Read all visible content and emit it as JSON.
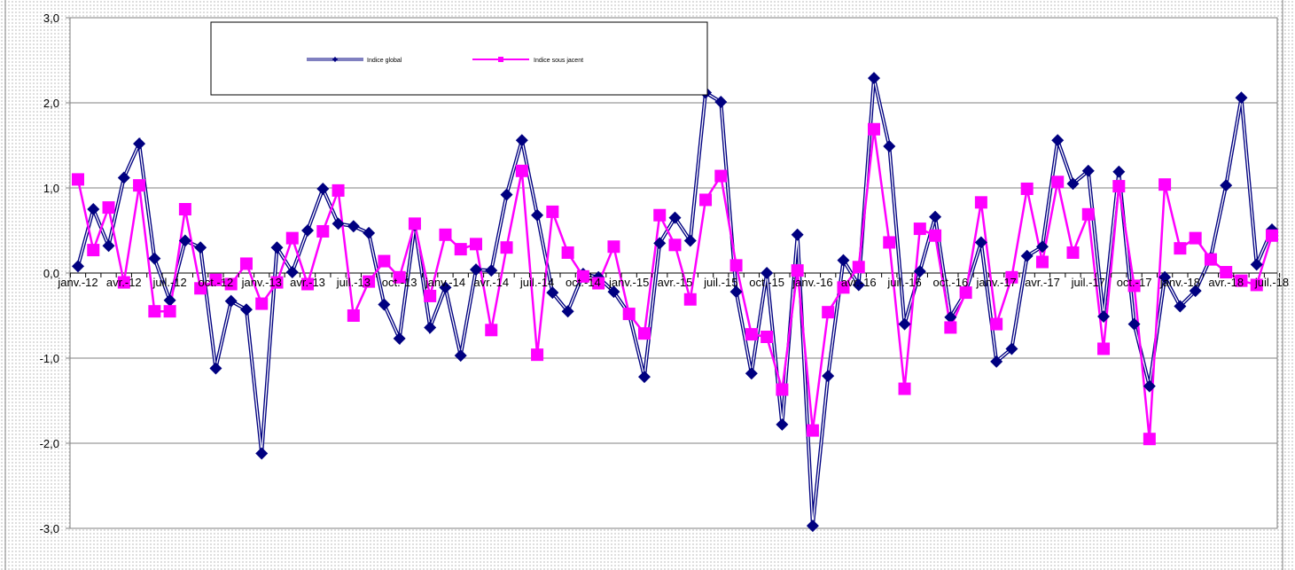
{
  "chart_data": {
    "type": "line",
    "title": "",
    "xlabel": "",
    "ylabel": "",
    "ylim": [
      -3.0,
      3.0
    ],
    "yticks": [
      3.0,
      2.0,
      1.0,
      0.0,
      -1.0,
      -2.0,
      -3.0
    ],
    "ytick_labels": [
      "3,0",
      "2,0",
      "1,0",
      "0,0",
      "-1,0",
      "-2,0",
      "-3,0"
    ],
    "grid": "horizontal",
    "legend_position": "top-left",
    "xtick_labels": [
      "janv.-12",
      "avr.-12",
      "juil.-12",
      "oct.-12",
      "janv.-13",
      "avr.-13",
      "juil.-13",
      "oct.-13",
      "janv.-14",
      "avr.-14",
      "juil.-14",
      "oct.-14",
      "janv.-15",
      "avr.-15",
      "juil.-15",
      "oct.-15",
      "janv.-16",
      "avr.-16",
      "juil.-16",
      "oct.-16",
      "janv.-17",
      "avr.-17",
      "juil.-17",
      "oct.-17",
      "janv.-18",
      "avr.-18",
      "juil.-18"
    ],
    "x_count": 79,
    "series": [
      {
        "name": "Indice global",
        "color": "#000080",
        "marker": "diamond",
        "values": [
          0.08,
          0.75,
          0.32,
          1.12,
          1.52,
          0.17,
          -0.32,
          0.38,
          0.3,
          -1.12,
          -0.33,
          -0.43,
          -2.12,
          0.3,
          0.01,
          0.5,
          0.99,
          0.58,
          0.55,
          0.47,
          -0.37,
          -0.77,
          0.56,
          -0.64,
          -0.17,
          -0.97,
          0.04,
          0.03,
          0.92,
          1.56,
          0.68,
          -0.23,
          -0.45,
          -0.01,
          -0.05,
          -0.22,
          -0.48,
          -1.22,
          0.35,
          0.65,
          0.38,
          2.12,
          2.01,
          -0.22,
          -1.18,
          0.0,
          -1.78,
          0.45,
          -2.97,
          -1.21,
          0.15,
          -0.14,
          2.29,
          1.49,
          -0.6,
          0.02,
          0.66,
          -0.52,
          -0.22,
          0.36,
          -1.04,
          -0.89,
          0.2,
          0.31,
          1.56,
          1.05,
          1.2,
          -0.51,
          1.19,
          -0.6,
          -1.33,
          -0.05,
          -0.39,
          -0.21,
          0.18,
          1.03,
          2.06,
          0.1,
          0.51
        ]
      },
      {
        "name": "Indice sous jacent",
        "color": "#FF00FF",
        "marker": "square",
        "values": [
          1.1,
          0.27,
          0.77,
          -0.11,
          1.03,
          -0.45,
          -0.45,
          0.75,
          -0.18,
          -0.08,
          -0.13,
          0.11,
          -0.36,
          -0.11,
          0.41,
          -0.13,
          0.49,
          0.97,
          -0.5,
          -0.1,
          0.14,
          -0.05,
          0.58,
          -0.27,
          0.45,
          0.28,
          0.34,
          -0.67,
          0.3,
          1.2,
          -0.96,
          0.72,
          0.24,
          -0.04,
          -0.12,
          0.31,
          -0.48,
          -0.71,
          0.68,
          0.33,
          -0.31,
          0.86,
          1.14,
          0.09,
          -0.72,
          -0.75,
          -1.37,
          0.03,
          -1.85,
          -0.46,
          -0.17,
          0.07,
          1.69,
          0.36,
          -1.36,
          0.52,
          0.44,
          -0.64,
          -0.23,
          0.83,
          -0.6,
          -0.05,
          0.99,
          0.13,
          1.07,
          0.24,
          0.69,
          -0.89,
          1.02,
          -0.15,
          -1.95,
          1.04,
          0.29,
          0.41,
          0.16,
          0.01,
          -0.09,
          -0.14,
          0.44
        ]
      }
    ]
  }
}
